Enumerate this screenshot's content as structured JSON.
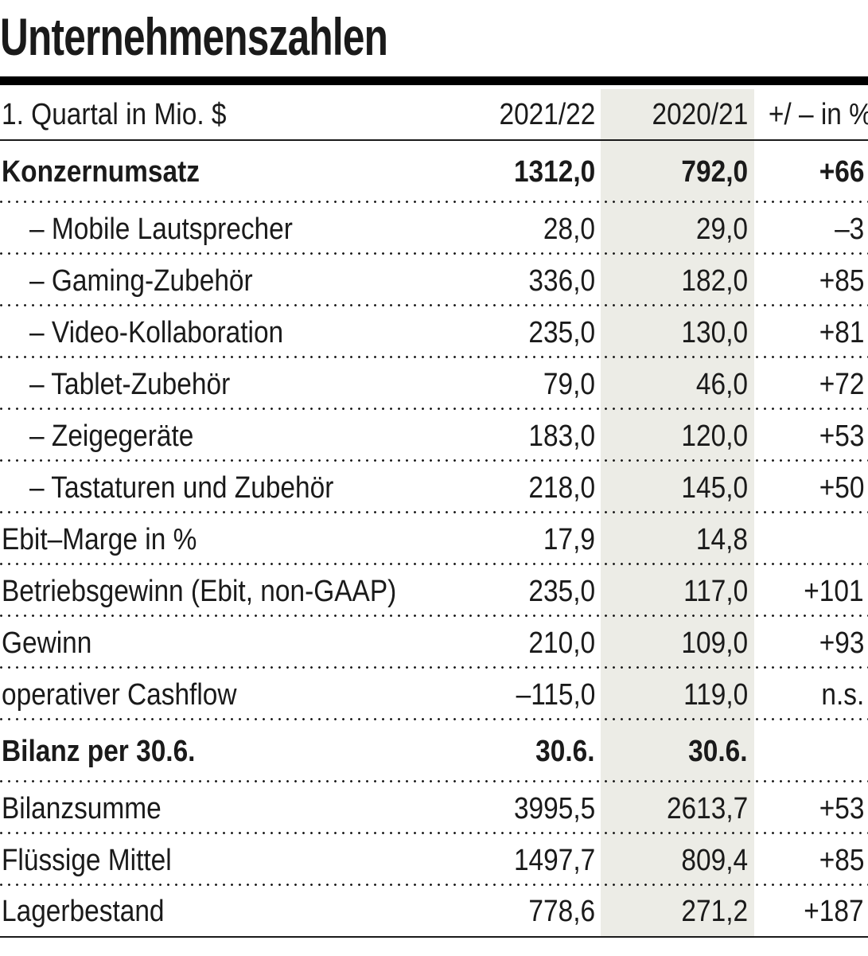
{
  "title": "Unternehmenszahlen",
  "colors": {
    "highlight_column": "#ecece6",
    "rule": "#000000",
    "text": "#1a1a1a"
  },
  "chart_data": {
    "type": "table",
    "title": "Unternehmenszahlen",
    "unit_note": "1. Quartal in Mio. $",
    "columns": [
      "1. Quartal in Mio. $",
      "2021/22",
      "2020/21",
      "+/ – in %"
    ],
    "highlighted_column": "2020/21",
    "rows": [
      {
        "label": "Konzernumsatz",
        "v2122": "1312,0",
        "v2021": "792,0",
        "pct": "+66",
        "bold": true,
        "indent": false
      },
      {
        "label": "– Mobile Lautsprecher",
        "v2122": "28,0",
        "v2021": "29,0",
        "pct": "–3",
        "bold": false,
        "indent": true
      },
      {
        "label": "– Gaming-Zubehör",
        "v2122": "336,0",
        "v2021": "182,0",
        "pct": "+85",
        "bold": false,
        "indent": true
      },
      {
        "label": "– Video-Kollaboration",
        "v2122": "235,0",
        "v2021": "130,0",
        "pct": "+81",
        "bold": false,
        "indent": true
      },
      {
        "label": "– Tablet-Zubehör",
        "v2122": "79,0",
        "v2021": "46,0",
        "pct": "+72",
        "bold": false,
        "indent": true
      },
      {
        "label": "– Zeigegeräte",
        "v2122": "183,0",
        "v2021": "120,0",
        "pct": "+53",
        "bold": false,
        "indent": true
      },
      {
        "label": "– Tastaturen und Zubehör",
        "v2122": "218,0",
        "v2021": "145,0",
        "pct": "+50",
        "bold": false,
        "indent": true
      },
      {
        "label": "Ebit–Marge in %",
        "v2122": "17,9",
        "v2021": "14,8",
        "pct": "",
        "bold": false,
        "indent": false
      },
      {
        "label": "Betriebsgewinn (Ebit, non-GAAP)",
        "v2122": "235,0",
        "v2021": "117,0",
        "pct": "+101",
        "bold": false,
        "indent": false
      },
      {
        "label": "Gewinn",
        "v2122": "210,0",
        "v2021": "109,0",
        "pct": "+93",
        "bold": false,
        "indent": false
      },
      {
        "label": "operativer Cashflow",
        "v2122": "–115,0",
        "v2021": "119,0",
        "pct": "n.s.",
        "bold": false,
        "indent": false
      },
      {
        "label": "Bilanz per 30.6.",
        "v2122": "30.6.",
        "v2021": "30.6.",
        "pct": "",
        "bold": true,
        "indent": false
      },
      {
        "label": "Bilanzsumme",
        "v2122": "3995,5",
        "v2021": "2613,7",
        "pct": "+53",
        "bold": false,
        "indent": false
      },
      {
        "label": "Flüssige Mittel",
        "v2122": "1497,7",
        "v2021": "809,4",
        "pct": "+85",
        "bold": false,
        "indent": false
      },
      {
        "label": "Lagerbestand",
        "v2122": "778,6",
        "v2021": "271,2",
        "pct": "+187",
        "bold": false,
        "indent": false
      }
    ]
  }
}
